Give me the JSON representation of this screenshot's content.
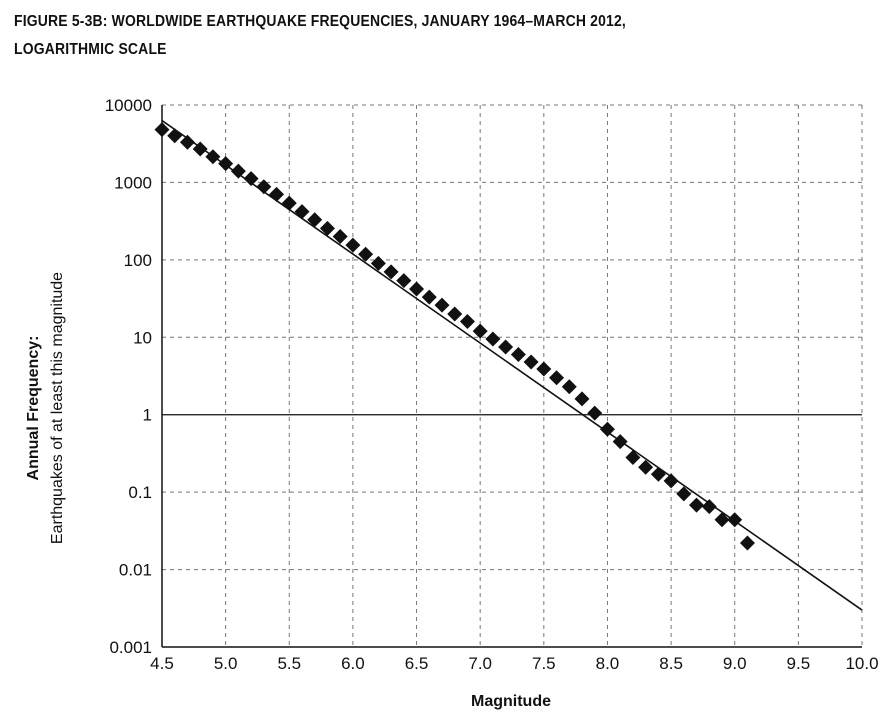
{
  "chart_data": {
    "type": "scatter",
    "title_line1": "FIGURE 5-3B: WORLDWIDE EARTHQUAKE FREQUENCIES, JANUARY 1964–MARCH 2012,",
    "title_line2": "LOGARITHMIC SCALE",
    "xlabel": "Magnitude",
    "ylabel_line1": "Annual Frequency:",
    "ylabel_line2": "Earthquakes of at least this magnitude",
    "xlim": [
      4.5,
      10.0
    ],
    "ylim": [
      0.001,
      10000
    ],
    "y_scale": "log",
    "grid": true,
    "x_ticks": [
      "4.5",
      "5.0",
      "5.5",
      "6.0",
      "6.5",
      "7.0",
      "7.5",
      "8.0",
      "8.5",
      "9.0",
      "9.5",
      "10.0"
    ],
    "y_ticks": [
      "0.001",
      "0.01",
      "0.1",
      "1",
      "10",
      "100",
      "1000",
      "10000"
    ],
    "series": [
      {
        "marker": "diamond",
        "color": "#111111",
        "points": [
          [
            4.5,
            4800
          ],
          [
            4.6,
            4000
          ],
          [
            4.7,
            3300
          ],
          [
            4.8,
            2700
          ],
          [
            4.9,
            2150
          ],
          [
            5.0,
            1750
          ],
          [
            5.1,
            1400
          ],
          [
            5.2,
            1120
          ],
          [
            5.3,
            880
          ],
          [
            5.4,
            700
          ],
          [
            5.5,
            540
          ],
          [
            5.6,
            420
          ],
          [
            5.7,
            330
          ],
          [
            5.8,
            255
          ],
          [
            5.9,
            200
          ],
          [
            6.0,
            155
          ],
          [
            6.1,
            118
          ],
          [
            6.2,
            90
          ],
          [
            6.3,
            70
          ],
          [
            6.4,
            54
          ],
          [
            6.5,
            42
          ],
          [
            6.6,
            33
          ],
          [
            6.7,
            26
          ],
          [
            6.8,
            20
          ],
          [
            6.9,
            16
          ],
          [
            7.0,
            12
          ],
          [
            7.1,
            9.5
          ],
          [
            7.2,
            7.5
          ],
          [
            7.3,
            6.0
          ],
          [
            7.4,
            4.8
          ],
          [
            7.5,
            3.9
          ],
          [
            7.6,
            3.0
          ],
          [
            7.7,
            2.3
          ],
          [
            7.8,
            1.6
          ],
          [
            7.9,
            1.05
          ],
          [
            8.0,
            0.65
          ],
          [
            8.1,
            0.45
          ],
          [
            8.2,
            0.28
          ],
          [
            8.3,
            0.21
          ],
          [
            8.4,
            0.17
          ],
          [
            8.5,
            0.14
          ],
          [
            8.6,
            0.095
          ],
          [
            8.7,
            0.068
          ],
          [
            8.8,
            0.065
          ],
          [
            8.9,
            0.044
          ],
          [
            9.0,
            0.044
          ],
          [
            9.1,
            0.022
          ]
        ]
      },
      {
        "type": "line",
        "color": "#111111",
        "points": [
          [
            4.5,
            6300
          ],
          [
            10.0,
            0.003
          ]
        ]
      }
    ]
  }
}
